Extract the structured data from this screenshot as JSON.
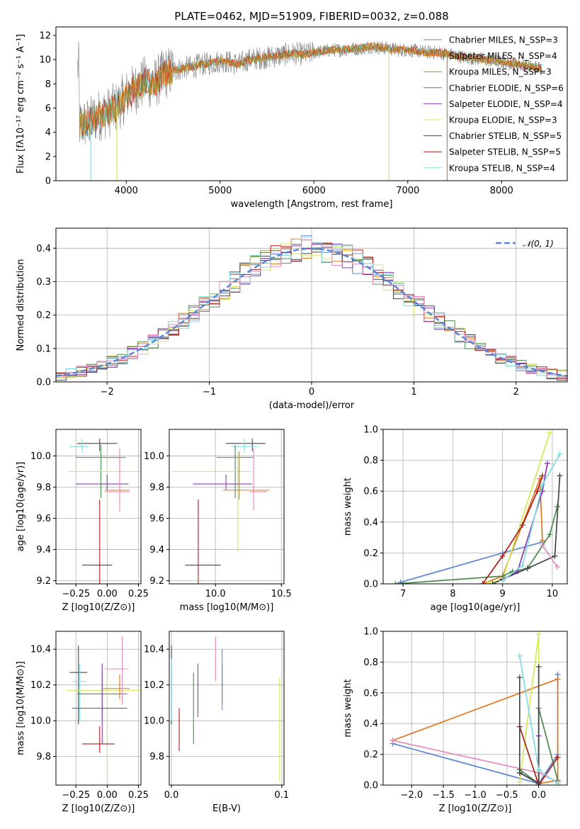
{
  "colors": {
    "chabrier_miles": "#5b86d6",
    "salpeter_miles": "#e0781f",
    "kroupa_miles": "#9a8b2a",
    "chabrier_elodie": "#4c8a4c",
    "salpeter_elodie": "#8b39b5",
    "kroupa_elodie": "#d4e85a",
    "chabrier_stelib": "#444444",
    "salpeter_stelib": "#b01a1a",
    "kroupa_stelib": "#7fdde0",
    "pink": "#e38bbd",
    "gray": "#808080",
    "grid": "#b0b0b0"
  },
  "chart_data": [
    {
      "id": "spectrum",
      "type": "line",
      "title": "PLATE=0462, MJD=51909, FIBERID=0032, z=0.088",
      "xlabel": "wavelength [Angstrom, rest frame]",
      "ylabel": "Flux [fλ10⁻¹⁷ erg cm⁻² s⁻¹ A⁻¹]",
      "xlim": [
        3250,
        8700
      ],
      "ylim": [
        0,
        12.7
      ],
      "xticks": [
        4000,
        5000,
        6000,
        7000,
        8000
      ],
      "yticks": [
        0,
        2,
        4,
        6,
        8,
        10,
        12
      ],
      "grid": false,
      "legend_position": "right",
      "legend": [
        "Chabrier MILES, N_SSP=3",
        "Salpeter MILES, N_SSP=4",
        "Kroupa MILES, N_SSP=3",
        "Chabrier ELODIE, N_SSP=6",
        "Salpeter ELODIE, N_SSP=4",
        "Kroupa ELODIE, N_SSP=3",
        "Chabrier STELIB, N_SSP=5",
        "Salpeter STELIB, N_SSP=5",
        "Kroupa STELIB, N_SSP=4"
      ],
      "continuum": [
        [
          3500,
          4.6
        ],
        [
          3600,
          4.8
        ],
        [
          3700,
          5.4
        ],
        [
          3800,
          5.6
        ],
        [
          3900,
          6.1
        ],
        [
          4000,
          7.0
        ],
        [
          4100,
          7.6
        ],
        [
          4200,
          8.2
        ],
        [
          4300,
          8.0
        ],
        [
          4400,
          8.8
        ],
        [
          4500,
          9.1
        ],
        [
          4600,
          9.3
        ],
        [
          4700,
          9.4
        ],
        [
          4800,
          9.6
        ],
        [
          4900,
          9.7
        ],
        [
          5000,
          9.9
        ],
        [
          5100,
          9.8
        ],
        [
          5200,
          9.6
        ],
        [
          5300,
          10.0
        ],
        [
          5400,
          10.1
        ],
        [
          5500,
          10.2
        ],
        [
          5600,
          10.3
        ],
        [
          5700,
          10.4
        ],
        [
          5800,
          10.5
        ],
        [
          5900,
          10.4
        ],
        [
          6000,
          10.6
        ],
        [
          6100,
          10.7
        ],
        [
          6200,
          10.8
        ],
        [
          6300,
          10.8
        ],
        [
          6400,
          10.9
        ],
        [
          6500,
          10.9
        ],
        [
          6600,
          11.1
        ],
        [
          6700,
          11.0
        ],
        [
          6800,
          10.9
        ],
        [
          6900,
          10.8
        ],
        [
          7000,
          10.8
        ],
        [
          7100,
          10.7
        ],
        [
          7200,
          10.6
        ],
        [
          7300,
          10.6
        ],
        [
          7400,
          10.5
        ],
        [
          7600,
          10.2
        ],
        [
          7800,
          10.0
        ],
        [
          8000,
          9.8
        ],
        [
          8200,
          9.6
        ],
        [
          8400,
          9.3
        ]
      ],
      "spikes": [
        [
          3900,
          0
        ],
        [
          6800,
          0
        ],
        [
          7420,
          0
        ],
        [
          3600,
          0
        ]
      ]
    },
    {
      "id": "residuals",
      "type": "line",
      "xlabel": "(data-model)/error",
      "ylabel": "Normed distribution",
      "xlim": [
        -2.5,
        2.5
      ],
      "ylim": [
        0,
        0.46
      ],
      "xticks": [
        -2,
        -1,
        0,
        1,
        2
      ],
      "yticks": [
        0.0,
        0.1,
        0.2,
        0.3,
        0.4
      ],
      "grid": true,
      "legend": [
        "𝒩(0, 1)"
      ],
      "legend_position": "top-right",
      "bin_width": 0.1
    },
    {
      "id": "age-vs-z",
      "type": "scatter",
      "xlabel": "Z [log10(Z/Z⊙)]",
      "ylabel": "age  [log10(age/yr)]",
      "xlim": [
        -0.41,
        0.27
      ],
      "ylim": [
        9.18,
        10.17
      ],
      "xticks": [
        -0.25,
        0.0,
        0.25
      ],
      "xtick_labels": [
        "−0.25",
        "0.00",
        "0.25"
      ],
      "yticks": [
        9.2,
        9.4,
        9.6,
        9.8,
        10.0
      ],
      "grid": true,
      "points": [
        {
          "c": "chabrier_stelib",
          "x": -0.06,
          "xerr": [
            0.18,
            0.14
          ],
          "y": 10.08,
          "yerr": [
            0.05,
            0.03
          ]
        },
        {
          "c": "kroupa_stelib",
          "x": -0.2,
          "xerr": [
            0.1,
            0.05
          ],
          "y": 10.06,
          "yerr": [
            0.04,
            0.05
          ]
        },
        {
          "c": "chabrier_elodie",
          "x": -0.05,
          "xerr": [
            0.2,
            0.2
          ],
          "y": 9.99,
          "yerr": [
            0.26,
            0.08
          ]
        },
        {
          "c": "kroupa_elodie",
          "x": 0.0,
          "xerr": [
            0.31,
            0.27
          ],
          "y": 9.9,
          "yerr": [
            0.45,
            0.12
          ]
        },
        {
          "c": "salpeter_elodie",
          "x": 0.0,
          "xerr": [
            0.25,
            0.17
          ],
          "y": 9.82,
          "yerr": [
            0.04,
            0.06
          ]
        },
        {
          "c": "salpeter_miles",
          "x": 0.1,
          "xerr": [
            0.12,
            0.08
          ],
          "y": 9.78,
          "yerr": [
            0.06,
            0.25
          ]
        },
        {
          "c": "pink",
          "x": 0.1,
          "xerr": [
            0.12,
            0.08
          ],
          "y": 9.77,
          "yerr": [
            0.13,
            0.28
          ]
        },
        {
          "c": "salpeter_stelib",
          "x": -0.06,
          "xerr": [
            0.14,
            0.1
          ],
          "y": 9.3,
          "yerr": [
            0.12,
            0.42
          ]
        }
      ]
    },
    {
      "id": "age-vs-mass",
      "type": "scatter",
      "xlabel": "mass [log10(M/M⊙)]",
      "xlim": [
        9.65,
        10.52
      ],
      "ylim": [
        9.18,
        10.17
      ],
      "xticks": [
        10.0,
        10.5
      ],
      "xtick_labels": [
        "10.0",
        "10.5"
      ],
      "yticks": [
        9.2,
        9.4,
        9.6,
        9.8,
        10.0
      ],
      "grid": true,
      "points": [
        {
          "c": "chabrier_stelib",
          "x": 10.28,
          "xerr": [
            0.2,
            0.1
          ],
          "y": 10.08,
          "yerr": [
            0.05,
            0.03
          ]
        },
        {
          "c": "kroupa_stelib",
          "x": 10.22,
          "xerr": [
            0.1,
            0.1
          ],
          "y": 10.06,
          "yerr": [
            0.04,
            0.05
          ]
        },
        {
          "c": "chabrier_elodie",
          "x": 10.15,
          "xerr": [
            0.14,
            0.14
          ],
          "y": 9.99,
          "yerr": [
            0.26,
            0.08
          ]
        },
        {
          "c": "kroupa_elodie",
          "x": 10.17,
          "xerr": [
            0.5,
            0.1
          ],
          "y": 9.9,
          "yerr": [
            0.52,
            0.12
          ]
        },
        {
          "c": "salpeter_elodie",
          "x": 10.08,
          "xerr": [
            0.25,
            0.2
          ],
          "y": 9.82,
          "yerr": [
            0.04,
            0.06
          ]
        },
        {
          "c": "salpeter_miles",
          "x": 10.18,
          "xerr": [
            0.12,
            0.23
          ],
          "y": 9.78,
          "yerr": [
            0.06,
            0.25
          ]
        },
        {
          "c": "pink",
          "x": 10.29,
          "xerr": [
            0.03,
            0.1
          ],
          "y": 9.77,
          "yerr": [
            0.12,
            0.28
          ]
        },
        {
          "c": "salpeter_stelib",
          "x": 9.87,
          "xerr": [
            0.1,
            0.17
          ],
          "y": 9.3,
          "yerr": [
            0.12,
            0.42
          ]
        }
      ]
    },
    {
      "id": "weight-vs-age",
      "type": "line",
      "xlabel": "age  [log10(age/yr)]",
      "ylabel": "mass weight",
      "xlim": [
        6.6,
        10.3
      ],
      "ylim": [
        0,
        1
      ],
      "xticks": [
        7,
        8,
        9,
        10
      ],
      "yticks": [
        0.0,
        0.2,
        0.4,
        0.6,
        0.8,
        1.0
      ],
      "grid": true,
      "series": [
        {
          "c": "chabrier_miles",
          "x": [
            6.95,
            9.0,
            9.8
          ],
          "y": [
            0.01,
            0.2,
            0.27
          ]
        },
        {
          "c": "salpeter_miles",
          "x": [
            8.6,
            9.0,
            9.75,
            9.8
          ],
          "y": [
            0.0,
            0.05,
            0.68,
            0.28
          ]
        },
        {
          "c": "kroupa_elodie",
          "x": [
            8.7,
            9.0,
            9.95
          ],
          "y": [
            0.0,
            0.03,
            0.98
          ]
        },
        {
          "c": "chabrier_elodie",
          "x": [
            6.85,
            9.0,
            9.2,
            9.5,
            9.95,
            10.1
          ],
          "y": [
            0.0,
            0.05,
            0.08,
            0.1,
            0.32,
            0.5
          ]
        },
        {
          "c": "salpeter_elodie",
          "x": [
            9.0,
            9.3,
            9.8,
            9.9
          ],
          "y": [
            0.03,
            0.08,
            0.6,
            0.78
          ]
        },
        {
          "c": "salpeter_stelib",
          "x": [
            8.6,
            9.0,
            9.4,
            9.7,
            9.8
          ],
          "y": [
            0.0,
            0.18,
            0.38,
            0.6,
            0.7
          ]
        },
        {
          "c": "chabrier_stelib",
          "x": [
            8.8,
            9.0,
            9.5,
            10.05,
            10.15
          ],
          "y": [
            0.0,
            0.03,
            0.1,
            0.18,
            0.7
          ]
        },
        {
          "c": "kroupa_stelib",
          "x": [
            9.0,
            9.4,
            9.8,
            10.15
          ],
          "y": [
            0.02,
            0.12,
            0.64,
            0.84
          ]
        },
        {
          "c": "pink",
          "x": [
            9.8,
            10.1
          ],
          "y": [
            0.25,
            0.11
          ]
        }
      ]
    },
    {
      "id": "mass-vs-z",
      "type": "scatter",
      "xlabel": "Z [log10(Z/Z⊙)]",
      "ylabel": "mass [log10(M/M⊙)]",
      "xlim": [
        -0.41,
        0.27
      ],
      "ylim": [
        9.64,
        10.5
      ],
      "xticks": [
        -0.25,
        0.0,
        0.25
      ],
      "xtick_labels": [
        "−0.25",
        "0.00",
        "0.25"
      ],
      "yticks": [
        9.8,
        10.0,
        10.2,
        10.4
      ],
      "grid": true,
      "points": [
        {
          "c": "chabrier_stelib",
          "x": -0.23,
          "xerr": [
            0.07,
            0.07
          ],
          "y": 10.27,
          "yerr": [
            0.29,
            0.15
          ]
        },
        {
          "c": "kroupa_stelib",
          "x": -0.22,
          "xerr": [
            0.06,
            0.05
          ],
          "y": 10.22,
          "yerr": [
            0.22,
            0.1
          ]
        },
        {
          "c": "chabrier_elodie",
          "x": -0.04,
          "xerr": [
            0.2,
            0.2
          ],
          "y": 10.15,
          "yerr": [
            0.14,
            0.12
          ]
        },
        {
          "c": "kroupa_elodie",
          "x": 0.0,
          "xerr": [
            0.33,
            0.28
          ],
          "y": 10.17,
          "yerr": [
            0.5,
            0.09
          ]
        },
        {
          "c": "salpeter_elodie",
          "x": -0.04,
          "xerr": [
            0.24,
            0.2
          ],
          "y": 10.07,
          "yerr": [
            0.2,
            0.25
          ]
        },
        {
          "c": "salpeter_miles",
          "x": 0.1,
          "xerr": [
            0.14,
            0.08
          ],
          "y": 10.18,
          "yerr": [
            0.06,
            0.08
          ]
        },
        {
          "c": "pink",
          "x": 0.12,
          "xerr": [
            0.14,
            0.05
          ],
          "y": 10.29,
          "yerr": [
            0.2,
            0.18
          ]
        },
        {
          "c": "salpeter_stelib",
          "x": -0.06,
          "xerr": [
            0.14,
            0.12
          ],
          "y": 9.87,
          "yerr": [
            0.05,
            0.1
          ]
        }
      ]
    },
    {
      "id": "mass-vs-ebv",
      "type": "scatter",
      "xlabel": "E(B-V)",
      "xlim": [
        -0.002,
        0.102
      ],
      "ylim": [
        9.64,
        10.5
      ],
      "xticks": [
        0.0,
        0.1
      ],
      "xtick_labels": [
        "0.0",
        "0.1"
      ],
      "yticks": [
        9.8,
        10.0,
        10.2,
        10.4
      ],
      "grid": true,
      "points": [
        {
          "c": "chabrier_stelib",
          "x": 0.0,
          "y": 10.27,
          "yerr": [
            0.29,
            0.15
          ]
        },
        {
          "c": "kroupa_stelib",
          "x": 0.0,
          "y": 10.22,
          "yerr": [
            0.22,
            0.13
          ]
        },
        {
          "c": "salpeter_stelib",
          "x": 0.007,
          "y": 9.95,
          "yerr": [
            0.12,
            0.12
          ]
        },
        {
          "c": "chabrier_elodie",
          "x": 0.02,
          "y": 10.07,
          "yerr": [
            0.2,
            0.2
          ]
        },
        {
          "c": "salpeter_elodie",
          "x": 0.024,
          "y": 10.14,
          "yerr": [
            0.12,
            0.18
          ]
        },
        {
          "c": "pink",
          "x": 0.04,
          "y": 10.3,
          "yerr": [
            0.08,
            0.17
          ]
        },
        {
          "c": "salpeter_miles",
          "x": 0.046,
          "y": 10.2,
          "yerr": [
            0.1,
            0.12
          ]
        },
        {
          "c": "chabrier_miles",
          "x": 0.046,
          "y": 10.23,
          "yerr": [
            0.17,
            0.17
          ]
        },
        {
          "c": "kroupa_elodie",
          "x": 0.098,
          "y": 9.96,
          "yerr": [
            0.3,
            0.28
          ]
        }
      ]
    },
    {
      "id": "weight-vs-z",
      "type": "line",
      "xlabel": "Z [log10(Z/Z⊙)]",
      "ylabel": "mass weight",
      "xlim": [
        -2.45,
        0.45
      ],
      "ylim": [
        0,
        1
      ],
      "xticks": [
        -2.0,
        -1.5,
        -1.0,
        -0.5,
        0.0
      ],
      "xtick_labels": [
        "−2.0",
        "−1.5",
        "−1.0",
        "−0.5",
        "0.0"
      ],
      "yticks": [
        0.0,
        0.2,
        0.4,
        0.6,
        0.8,
        1.0
      ],
      "grid": true,
      "series": [
        {
          "c": "chabrier_miles",
          "x": [
            -2.3,
            0.0,
            0.3,
            0.3
          ],
          "y": [
            0.27,
            0.01,
            0.2,
            0.72
          ]
        },
        {
          "c": "salpeter_miles",
          "x": [
            -2.3,
            0.3,
            0.3,
            0.0
          ],
          "y": [
            0.29,
            0.69,
            0.03,
            0.01
          ]
        },
        {
          "c": "pink",
          "x": [
            -2.3,
            0.0,
            0.3
          ],
          "y": [
            0.29,
            0.08,
            0.02
          ]
        },
        {
          "c": "kroupa_elodie",
          "x": [
            -0.3,
            0.0,
            0.0
          ],
          "y": [
            0.02,
            0.98,
            0.03
          ]
        },
        {
          "c": "chabrier_elodie",
          "x": [
            -0.3,
            0.0,
            0.0,
            0.3
          ],
          "y": [
            0.1,
            0.01,
            0.5,
            0.03
          ]
        },
        {
          "c": "salpeter_elodie",
          "x": [
            -0.3,
            0.0,
            0.0
          ],
          "y": [
            0.08,
            0.01,
            0.32
          ]
        },
        {
          "c": "salpeter_stelib",
          "x": [
            -0.3,
            0.0,
            0.3
          ],
          "y": [
            0.38,
            0.0,
            0.18
          ]
        },
        {
          "c": "chabrier_stelib",
          "x": [
            -0.3,
            -0.3,
            0.0,
            0.0
          ],
          "y": [
            0.7,
            0.08,
            0.01,
            0.77
          ]
        },
        {
          "c": "kroupa_stelib",
          "x": [
            -0.3,
            0.0,
            0.3
          ],
          "y": [
            0.84,
            0.1,
            0.01
          ]
        }
      ]
    }
  ]
}
